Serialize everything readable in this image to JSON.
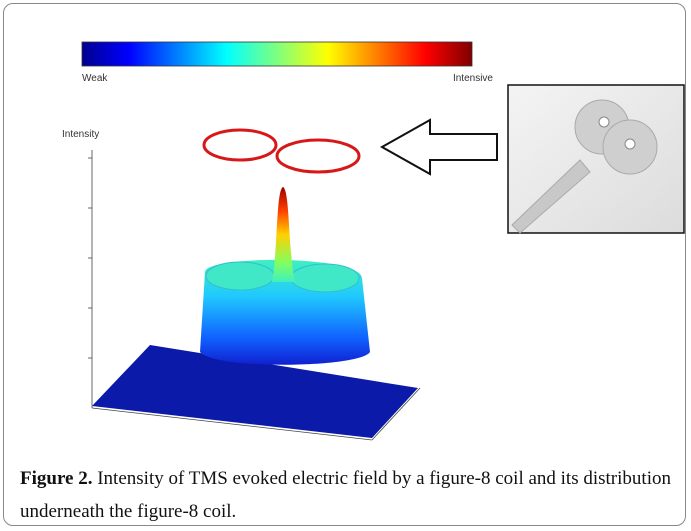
{
  "figure": {
    "colorbar": {
      "low_label": "Weak",
      "high_label": "Intensive"
    },
    "axis_label": "Intensity",
    "caption": {
      "label": "Figure 2.",
      "text": "Intensity of TMS evoked electric field by a figure-8 coil and its distribution underneath the figure-8 coil."
    }
  }
}
